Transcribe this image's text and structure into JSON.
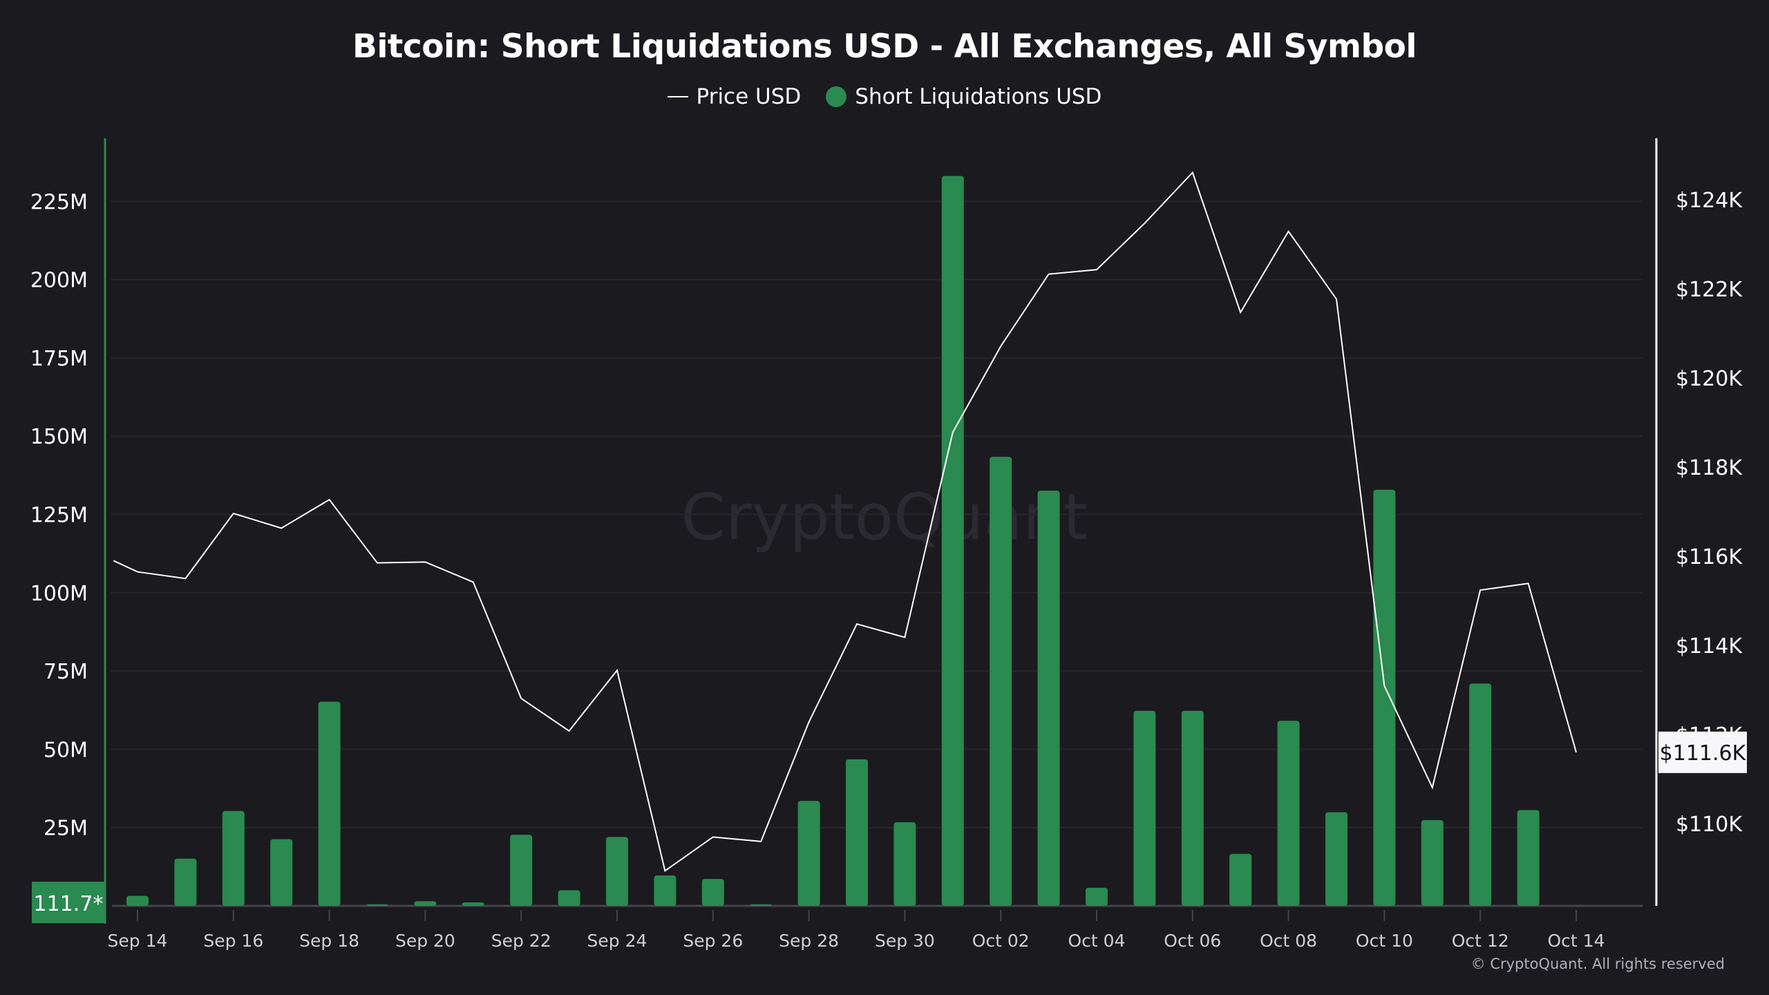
{
  "chart_data": {
    "type": "bar+line",
    "title": "Bitcoin: Short Liquidations USD - All Exchanges, All Symbol",
    "legend": [
      "Price USD",
      "Short Liquidations USD"
    ],
    "legend_position": "top-center",
    "watermark": "CryptoQuant",
    "copyright": "© CryptoQuant. All rights reserved",
    "x_tick_labels": [
      "Sep 14",
      "Sep 16",
      "Sep 18",
      "Sep 20",
      "Sep 22",
      "Sep 24",
      "Sep 26",
      "Sep 28",
      "Sep 30",
      "Oct 02",
      "Oct 04",
      "Oct 06",
      "Oct 08",
      "Oct 10",
      "Oct 12",
      "Oct 14"
    ],
    "dates": [
      "Sep 14",
      "Sep 15",
      "Sep 16",
      "Sep 17",
      "Sep 18",
      "Sep 19",
      "Sep 20",
      "Sep 21",
      "Sep 22",
      "Sep 23",
      "Sep 24",
      "Sep 25",
      "Sep 26",
      "Sep 27",
      "Sep 28",
      "Sep 29",
      "Sep 30",
      "Oct 01",
      "Oct 02",
      "Oct 03",
      "Oct 04",
      "Oct 05",
      "Oct 06",
      "Oct 07",
      "Oct 08",
      "Oct 09",
      "Oct 10",
      "Oct 11",
      "Oct 12",
      "Oct 13",
      "Oct 14"
    ],
    "y_left": {
      "label": "Short Liquidations USD",
      "ticks": [
        "25M",
        "50M",
        "75M",
        "100M",
        "125M",
        "150M",
        "175M",
        "200M",
        "225M"
      ],
      "range_millions": [
        0,
        240
      ],
      "current_label": "111.7*"
    },
    "y_right": {
      "label": "Price USD",
      "ticks": [
        "$110K",
        "$112K",
        "$114K",
        "$116K",
        "$118K",
        "$120K",
        "$122K",
        "$124K"
      ],
      "range_k": [
        108.2,
        125.6
      ],
      "current_label": "$111.6K"
    },
    "series": [
      {
        "name": "Short Liquidations USD",
        "type": "bar",
        "unit": "million USD",
        "color": "#2a8a50",
        "values": [
          3.2,
          15.1,
          30.3,
          21.3,
          65.2,
          0.5,
          1.5,
          1.1,
          22.7,
          5.0,
          22.0,
          9.7,
          8.6,
          0.5,
          33.5,
          46.8,
          26.7,
          233.1,
          143.4,
          132.6,
          5.8,
          62.3,
          62.3,
          16.6,
          59.1,
          29.9,
          132.9,
          27.4,
          71.0,
          30.6,
          null
        ]
      },
      {
        "name": "Price USD",
        "type": "line",
        "unit": "thousand USD",
        "color": "#ffffff",
        "x_offset_days": -0.5,
        "first_value": 115.9,
        "values": [
          115.65,
          115.5,
          116.96,
          116.63,
          117.27,
          115.85,
          115.87,
          115.42,
          112.81,
          112.08,
          113.44,
          108.94,
          109.7,
          109.6,
          112.28,
          114.48,
          114.18,
          118.78,
          120.71,
          122.33,
          122.43,
          123.47,
          124.61,
          121.47,
          123.29,
          121.77,
          113.09,
          110.81,
          115.24,
          115.39,
          111.6
        ]
      }
    ],
    "grid": true
  }
}
